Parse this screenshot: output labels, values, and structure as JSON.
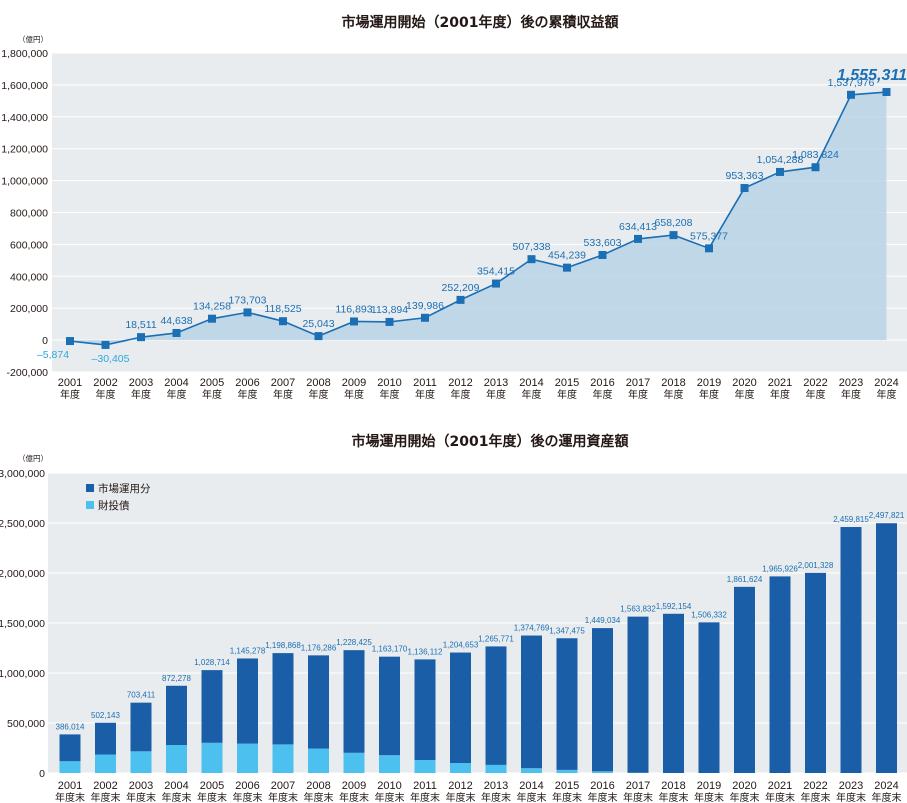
{
  "chart_data": [
    {
      "type": "area",
      "title": "市場運用開始（2001年度）後の累積収益額",
      "unit": "（億円）",
      "x": [
        "2001",
        "2002",
        "2003",
        "2004",
        "2005",
        "2006",
        "2007",
        "2008",
        "2009",
        "2010",
        "2011",
        "2012",
        "2013",
        "2014",
        "2015",
        "2016",
        "2017",
        "2018",
        "2019",
        "2020",
        "2021",
        "2022",
        "2023",
        "2024"
      ],
      "x_suffix": "年度",
      "values": [
        -5874,
        -30405,
        18511,
        44638,
        134258,
        173703,
        118525,
        25043,
        116893,
        113894,
        139986,
        252209,
        354415,
        507338,
        454239,
        533603,
        634413,
        658208,
        575377,
        953363,
        1054288,
        1083824,
        1537976,
        1555311
      ],
      "value_labels": [
        "–5,874",
        "–30,405",
        "18,511",
        "44,638",
        "134,258",
        "173,703",
        "118,525",
        "25,043",
        "116,893",
        "113,894",
        "139,986",
        "252,209",
        "354,415",
        "507,338",
        "454,239",
        "533,603",
        "634,413",
        "658,208",
        "575,377",
        "953,363",
        "1,054,288",
        "1,083,824",
        "1,537,976",
        "1,555,311"
      ],
      "ylim": [
        -200000,
        1800000
      ],
      "yticks": [
        -200000,
        0,
        200000,
        400000,
        600000,
        800000,
        1000000,
        1200000,
        1400000,
        1600000,
        1800000
      ],
      "ytick_labels": [
        "-200,000",
        "0",
        "200,000",
        "400,000",
        "600,000",
        "800,000",
        "1,000,000",
        "1,200,000",
        "1,400,000",
        "1,600,000",
        "1,800,000"
      ],
      "grid": true,
      "colors": {
        "line": "#1b6fb4",
        "fill": "#b9d3e6",
        "plot_bg": "#e9ecee",
        "marker": "#1b6fb4",
        "negative_label": "#2aa9df"
      }
    },
    {
      "type": "bar",
      "stacked": true,
      "title": "市場運用開始（2001年度）後の運用資産額",
      "unit": "（億円）",
      "categories": [
        "2001",
        "2002",
        "2003",
        "2004",
        "2005",
        "2006",
        "2007",
        "2008",
        "2009",
        "2010",
        "2011",
        "2012",
        "2013",
        "2014",
        "2015",
        "2016",
        "2017",
        "2018",
        "2019",
        "2020",
        "2021",
        "2022",
        "2023",
        "2024"
      ],
      "category_suffix": "年度末",
      "series": [
        {
          "name": "市場運用分",
          "color": "#1a5ea8",
          "values": [
            268014,
            317143,
            486411,
            592278,
            726714,
            851278,
            912868,
            931286,
            1026425,
            985170,
            1006112,
            1104653,
            1184771,
            1326769,
            1316475,
            1432034,
            1561832,
            1592154,
            1506332,
            1861624,
            1965926,
            2001328,
            2459815,
            2497821
          ]
        },
        {
          "name": "財投債",
          "color": "#4cc0ee",
          "values": [
            118000,
            185000,
            217000,
            280000,
            302000,
            294000,
            286000,
            245000,
            202000,
            178000,
            130000,
            100000,
            81000,
            48000,
            31000,
            17000,
            2000,
            0,
            0,
            0,
            0,
            0,
            0,
            0
          ]
        }
      ],
      "totals": [
        386014,
        502143,
        703411,
        872278,
        1028714,
        1145278,
        1198868,
        1176286,
        1228425,
        1163170,
        1136112,
        1204653,
        1265771,
        1374769,
        1347475,
        1449034,
        1563832,
        1592154,
        1506332,
        1861624,
        1965926,
        2001328,
        2459815,
        2497821
      ],
      "total_labels": [
        "386,014",
        "502,143",
        "703,411",
        "872,278",
        "1,028,714",
        "1,145,278",
        "1,198,868",
        "1,176,286",
        "1,228,425",
        "1,163,170",
        "1,136,112",
        "1,204,653",
        "1,265,771",
        "1,374,769",
        "1,347,475",
        "1,449,034",
        "1,563,832",
        "1,592,154",
        "1,506,332",
        "1,861,624",
        "1,965,926",
        "2,001,328",
        "2,459,815",
        "2,497,821"
      ],
      "ylim": [
        0,
        3000000
      ],
      "yticks": [
        0,
        500000,
        1000000,
        1500000,
        2000000,
        2500000,
        3000000
      ],
      "ytick_labels": [
        "0",
        "500,000",
        "1,000,000",
        "1,500,000",
        "2,000,000",
        "2,500,000",
        "3,000,000"
      ],
      "grid": true,
      "legend": "top-left"
    }
  ]
}
